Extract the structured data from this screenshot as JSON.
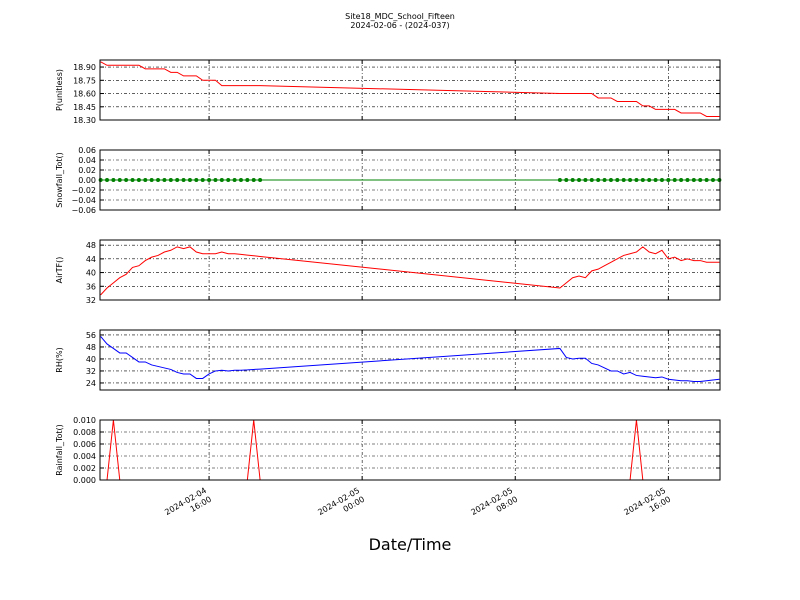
{
  "chart_data": {
    "type": "line",
    "title": "Site18_MDC_School_Fifteen",
    "subtitle": "2024-02-06 - (2024-037)",
    "x_label": "Date/Time",
    "grid": true,
    "x": [
      "2024-02-04 10:20",
      "2024-02-04 10:40",
      "2024-02-04 11:00",
      "2024-02-04 11:20",
      "2024-02-04 11:40",
      "2024-02-04 12:00",
      "2024-02-04 12:20",
      "2024-02-04 12:40",
      "2024-02-04 13:00",
      "2024-02-04 13:20",
      "2024-02-04 13:40",
      "2024-02-04 14:00",
      "2024-02-04 14:20",
      "2024-02-04 14:40",
      "2024-02-04 15:00",
      "2024-02-04 15:20",
      "2024-02-04 15:40",
      "2024-02-04 16:00",
      "2024-02-04 16:20",
      "2024-02-04 16:40",
      "2024-02-04 17:00",
      "2024-02-04 17:20",
      "2024-02-04 17:40",
      "2024-02-04 18:00",
      "2024-02-04 18:20",
      "2024-02-04 18:40",
      "2024-02-05 10:20",
      "2024-02-05 10:40",
      "2024-02-05 11:00",
      "2024-02-05 11:20",
      "2024-02-05 11:40",
      "2024-02-05 12:00",
      "2024-02-05 12:20",
      "2024-02-05 12:40",
      "2024-02-05 13:00",
      "2024-02-05 13:20",
      "2024-02-05 13:40",
      "2024-02-05 14:00",
      "2024-02-05 14:20",
      "2024-02-05 14:40",
      "2024-02-05 15:00",
      "2024-02-05 15:20",
      "2024-02-05 15:40",
      "2024-02-05 16:00",
      "2024-02-05 16:20",
      "2024-02-05 16:40",
      "2024-02-05 17:00",
      "2024-02-05 17:20",
      "2024-02-05 17:40",
      "2024-02-05 18:00",
      "2024-02-05 18:20",
      "2024-02-05 18:40"
    ],
    "xlim": [
      "2024-02-04 10:18",
      "2024-02-05 18:42"
    ],
    "xticks": [
      {
        "value": "2024-02-04 16:00",
        "label": "2024-02-04\n16:00"
      },
      {
        "value": "2024-02-05 00:00",
        "label": "2024-02-05\n00:00"
      },
      {
        "value": "2024-02-05 08:00",
        "label": "2024-02-05\n08:00"
      },
      {
        "value": "2024-02-05 16:00",
        "label": "2024-02-05\n16:00"
      }
    ],
    "panels": [
      {
        "y_label": "P(unitless)",
        "color": "#ff0000",
        "marker": false,
        "ylim": [
          18.3,
          18.98
        ],
        "yticks": [
          {
            "value": 18.3,
            "label": "18.30"
          },
          {
            "value": 18.45,
            "label": "18.45"
          },
          {
            "value": 18.6,
            "label": "18.60"
          },
          {
            "value": 18.75,
            "label": "18.75"
          },
          {
            "value": 18.9,
            "label": "18.90"
          }
        ],
        "values": [
          18.96,
          18.92,
          18.92,
          18.92,
          18.92,
          18.92,
          18.92,
          18.88,
          18.88,
          18.88,
          18.88,
          18.84,
          18.84,
          18.8,
          18.8,
          18.8,
          18.75,
          18.75,
          18.75,
          18.69,
          18.69,
          18.69,
          18.69,
          18.69,
          18.69,
          18.69,
          18.6,
          18.6,
          18.6,
          18.6,
          18.6,
          18.6,
          18.55,
          18.55,
          18.55,
          18.51,
          18.51,
          18.51,
          18.51,
          18.46,
          18.46,
          18.42,
          18.42,
          18.42,
          18.42,
          18.38,
          18.38,
          18.38,
          18.38,
          18.34,
          18.34,
          18.34
        ]
      },
      {
        "y_label": "Snowfall_Tot()",
        "color": "#008000",
        "marker": true,
        "ylim": [
          -0.06,
          0.06
        ],
        "yticks": [
          {
            "value": -0.06,
            "label": "−0.06"
          },
          {
            "value": -0.04,
            "label": "−0.04"
          },
          {
            "value": -0.02,
            "label": "−0.02"
          },
          {
            "value": 0,
            "label": "0.00"
          },
          {
            "value": 0.02,
            "label": "0.02"
          },
          {
            "value": 0.04,
            "label": "0.04"
          },
          {
            "value": 0.06,
            "label": "0.06"
          }
        ],
        "values": [
          0,
          0,
          0,
          0,
          0,
          0,
          0,
          0,
          0,
          0,
          0,
          0,
          0,
          0,
          0,
          0,
          0,
          0,
          0,
          0,
          0,
          0,
          0,
          0,
          0,
          0,
          0,
          0,
          0,
          0,
          0,
          0,
          0,
          0,
          0,
          0,
          0,
          0,
          0,
          0,
          0,
          0,
          0,
          0,
          0,
          0,
          0,
          0,
          0,
          0,
          0,
          0
        ]
      },
      {
        "y_label": "AirTF()",
        "color": "#ff0000",
        "marker": false,
        "ylim": [
          32,
          49.5
        ],
        "yticks": [
          32,
          36,
          40,
          44,
          48
        ],
        "values": [
          33.5,
          35.5,
          37,
          38.5,
          39.5,
          41.5,
          42,
          43.5,
          44.5,
          45,
          46,
          46.5,
          47.5,
          47,
          47.5,
          46,
          45.5,
          45.5,
          45.5,
          46,
          45.5,
          45.5,
          45.3,
          45.1,
          44.9,
          44.7,
          35.5,
          37,
          38.5,
          39,
          38.5,
          40.5,
          41,
          42,
          43,
          44,
          45,
          45.5,
          46,
          47.5,
          46,
          45.5,
          46.5,
          44,
          44.5,
          43.5,
          44,
          43.5,
          43.5,
          43,
          43,
          43
        ]
      },
      {
        "y_label": "RH(%)",
        "color": "#0000ff",
        "marker": false,
        "ylim": [
          19.3,
          59.3
        ],
        "yticks": [
          24,
          32,
          40,
          48,
          56
        ],
        "values": [
          55,
          50,
          47,
          44,
          44,
          41,
          38,
          38,
          36,
          35,
          34,
          33,
          31,
          30,
          30,
          27,
          27,
          30,
          32,
          32.5,
          32,
          32.5,
          32.5,
          32.7,
          33,
          33.2,
          47,
          41,
          40,
          40.5,
          40.5,
          37,
          36,
          34,
          32,
          32,
          30,
          31,
          29,
          28.5,
          28,
          27.5,
          28,
          26.5,
          26,
          25.5,
          25.5,
          25,
          25,
          25.5,
          26,
          26.5
        ]
      },
      {
        "y_label": "Rainfall_Tot()",
        "color": "#ff0000",
        "marker": false,
        "ylim": [
          0,
          0.01
        ],
        "yticks": [
          {
            "value": 0,
            "label": "0.000"
          },
          {
            "value": 0.002,
            "label": "0.002"
          },
          {
            "value": 0.004,
            "label": "0.004"
          },
          {
            "value": 0.006,
            "label": "0.006"
          },
          {
            "value": 0.008,
            "label": "0.008"
          },
          {
            "value": 0.01,
            "label": "0.010"
          }
        ],
        "values": [
          0,
          0,
          0.01,
          0,
          0,
          0,
          0,
          0,
          0,
          0,
          0,
          0,
          0,
          0,
          0,
          0,
          0,
          0,
          0,
          0,
          0,
          0,
          0,
          0,
          0.01,
          0,
          0,
          0,
          0,
          0,
          0,
          0,
          0,
          0,
          0,
          0,
          0,
          0,
          0.01,
          0,
          0,
          0,
          0,
          0,
          0,
          0,
          0,
          0,
          0,
          0,
          0,
          0
        ]
      }
    ]
  }
}
